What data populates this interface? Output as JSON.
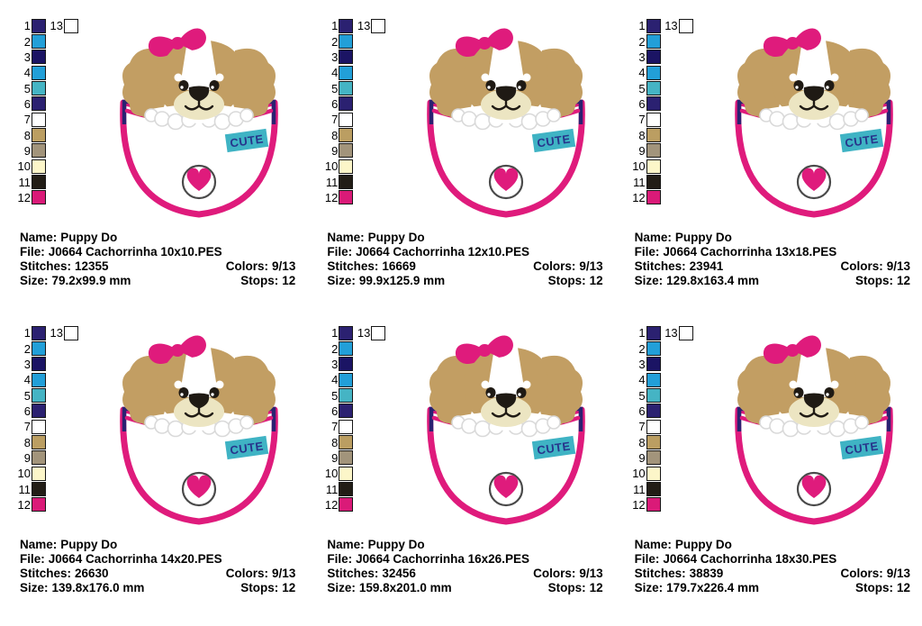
{
  "labels": {
    "name": "Name:",
    "file": "File:",
    "stitches": "Stitches:",
    "colors": "Colors:",
    "size": "Size:",
    "stops": "Stops:"
  },
  "panels": [
    {
      "name": "Puppy Do",
      "file": "J0664 Cachorrinha 10x10.PES",
      "stitches": "12355",
      "colors": "9/13",
      "size": "79.2x99.9 mm",
      "stops": "12"
    },
    {
      "name": "Puppy Do",
      "file": "J0664 Cachorrinha 12x10.PES",
      "stitches": "16669",
      "colors": "9/13",
      "size": "99.9x125.9 mm",
      "stops": "12"
    },
    {
      "name": "Puppy Do",
      "file": "J0664 Cachorrinha 13x18.PES",
      "stitches": "23941",
      "colors": "9/13",
      "size": "129.8x163.4 mm",
      "stops": "12"
    },
    {
      "name": "Puppy Do",
      "file": "J0664 Cachorrinha 14x20.PES",
      "stitches": "26630",
      "colors": "9/13",
      "size": "139.8x176.0 mm",
      "stops": "12"
    },
    {
      "name": "Puppy Do",
      "file": "J0664 Cachorrinha 16x26.PES",
      "stitches": "32456",
      "colors": "9/13",
      "size": "159.8x201.0 mm",
      "stops": "12"
    },
    {
      "name": "Puppy Do",
      "file": "J0664 Cachorrinha 18x30.PES",
      "stitches": "38839",
      "colors": "9/13",
      "size": "179.7x226.4 mm",
      "stops": "12"
    }
  ],
  "palette": {
    "swatches": [
      {
        "num": "1",
        "color": "#2b2171"
      },
      {
        "num": "2",
        "color": "#229fd8"
      },
      {
        "num": "3",
        "color": "#1b1464"
      },
      {
        "num": "4",
        "color": "#229fd8"
      },
      {
        "num": "5",
        "color": "#45b4c4"
      },
      {
        "num": "6",
        "color": "#2b2171"
      },
      {
        "num": "7",
        "color": "#ffffff"
      },
      {
        "num": "8",
        "color": "#bb9e62"
      },
      {
        "num": "9",
        "color": "#a2947b"
      },
      {
        "num": "10",
        "color": "#fcf6c9"
      },
      {
        "num": "11",
        "color": "#221d16"
      },
      {
        "num": "12",
        "color": "#da1a78"
      }
    ],
    "extra": {
      "num": "13",
      "color": "#ffffff"
    }
  },
  "artwork": {
    "cute_label": "CUTE",
    "colors": {
      "pink": "#df1b7c",
      "navy": "#2b2171",
      "teal": "#3fb3c4",
      "tag_text": "#27348b",
      "tan": "#c29e63",
      "cream": "#ece5c2",
      "black": "#1f1a14",
      "badge_ring": "#4a4a4a",
      "toe_stroke": "#d9d9d9"
    }
  }
}
